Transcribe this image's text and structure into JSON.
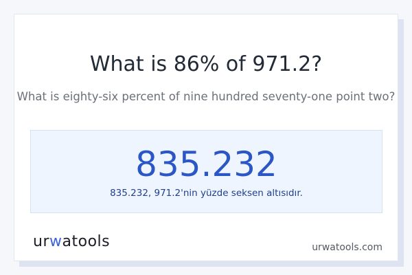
{
  "title": "What is 86% of 971.2?",
  "subtitle": "What is eighty-six percent of nine hundred seventy-one point two?",
  "result": {
    "value": "835.232",
    "description": "835.232, 971.2'nin yüzde seksen altısıdır."
  },
  "footer": {
    "logo": "urwatools",
    "site": "urwatools.com"
  },
  "colors": {
    "accent": "#2a56c6",
    "result_bg": "#eef5ff"
  }
}
